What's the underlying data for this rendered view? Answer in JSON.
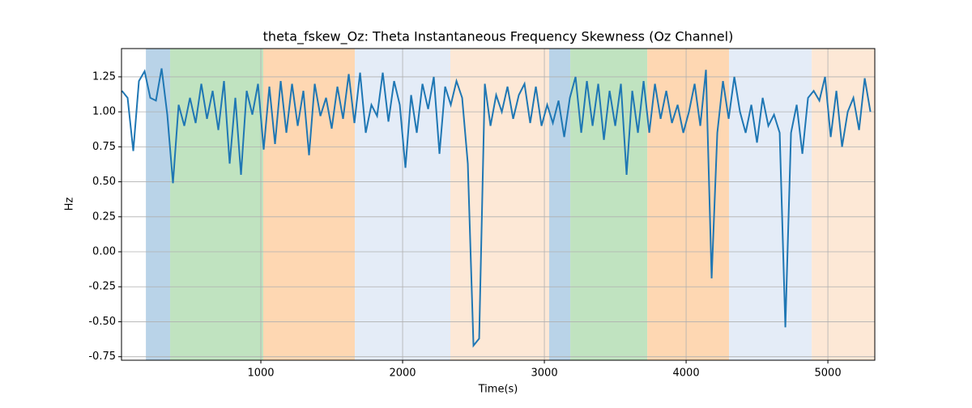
{
  "chart_data": {
    "type": "line",
    "title": "theta_fskew_Oz: Theta Instantaneous Frequency Skewness (Oz Channel)",
    "xlabel": "Time(s)",
    "ylabel": "Hz",
    "xlim": [
      17,
      5331
    ],
    "ylim": [
      -0.775,
      1.452
    ],
    "xticks": [
      1000,
      2000,
      3000,
      4000,
      5000
    ],
    "yticks": [
      -0.75,
      {
        "value": -0.5,
        "label": "-0.50"
      },
      -0.25,
      {
        "value": 0,
        "label": "0.00"
      },
      0.25,
      {
        "value": 0.5,
        "label": "0.50"
      },
      0.75,
      {
        "value": 1,
        "label": "1.00"
      },
      1.25
    ],
    "grid": true,
    "spans": [
      {
        "x0": 189,
        "x1": 360,
        "color": "#b9d3e8"
      },
      {
        "x0": 360,
        "x1": 1017,
        "color": "#c0e3c0"
      },
      {
        "x0": 1017,
        "x1": 1663,
        "color": "#fed7b2"
      },
      {
        "x0": 1663,
        "x1": 2337,
        "color": "#e4ecf7"
      },
      {
        "x0": 2337,
        "x1": 3034,
        "color": "#fde8d6"
      },
      {
        "x0": 3034,
        "x1": 3183,
        "color": "#b9d3e8"
      },
      {
        "x0": 3183,
        "x1": 3726,
        "color": "#c0e3c0"
      },
      {
        "x0": 3726,
        "x1": 4303,
        "color": "#fed7b2"
      },
      {
        "x0": 4303,
        "x1": 4886,
        "color": "#e4ecf7"
      },
      {
        "x0": 4886,
        "x1": 5331,
        "color": "#fde8d6"
      }
    ],
    "x": [
      20,
      60,
      100,
      140,
      180,
      220,
      260,
      300,
      340,
      380,
      420,
      460,
      500,
      540,
      580,
      620,
      660,
      700,
      740,
      780,
      820,
      860,
      900,
      940,
      980,
      1020,
      1060,
      1100,
      1140,
      1180,
      1220,
      1260,
      1300,
      1340,
      1380,
      1420,
      1460,
      1500,
      1540,
      1580,
      1620,
      1660,
      1700,
      1740,
      1780,
      1820,
      1860,
      1900,
      1940,
      1980,
      2020,
      2060,
      2100,
      2140,
      2180,
      2220,
      2260,
      2300,
      2340,
      2380,
      2420,
      2460,
      2500,
      2540,
      2580,
      2620,
      2660,
      2700,
      2740,
      2780,
      2820,
      2860,
      2900,
      2940,
      2980,
      3020,
      3060,
      3100,
      3140,
      3180,
      3220,
      3260,
      3300,
      3340,
      3380,
      3420,
      3460,
      3500,
      3540,
      3580,
      3620,
      3660,
      3700,
      3740,
      3780,
      3820,
      3860,
      3900,
      3940,
      3980,
      4020,
      4060,
      4100,
      4140,
      4180,
      4220,
      4260,
      4300,
      4340,
      4380,
      4420,
      4460,
      4500,
      4540,
      4580,
      4620,
      4660,
      4700,
      4740,
      4780,
      4820,
      4860,
      4900,
      4940,
      4980,
      5020,
      5060,
      5100,
      5140,
      5180,
      5220,
      5260,
      5300
    ],
    "series": [
      {
        "color": "#1f77b4",
        "values": [
          1.15,
          1.1,
          0.72,
          1.22,
          1.29,
          1.1,
          1.08,
          1.31,
          0.98,
          0.49,
          1.05,
          0.9,
          1.1,
          0.92,
          1.2,
          0.95,
          1.15,
          0.87,
          1.22,
          0.63,
          1.1,
          0.55,
          1.15,
          0.98,
          1.2,
          0.73,
          1.18,
          0.77,
          1.22,
          0.85,
          1.2,
          0.9,
          1.15,
          0.69,
          1.2,
          0.97,
          1.1,
          0.88,
          1.18,
          0.95,
          1.27,
          0.92,
          1.28,
          0.85,
          1.05,
          0.97,
          1.28,
          0.93,
          1.22,
          1.05,
          0.6,
          1.12,
          0.85,
          1.2,
          1.02,
          1.25,
          0.7,
          1.18,
          1.05,
          1.22,
          1.1,
          0.63,
          -0.67,
          -0.62,
          1.2,
          0.9,
          1.12,
          1.0,
          1.18,
          0.95,
          1.12,
          1.2,
          0.92,
          1.18,
          0.9,
          1.05,
          0.92,
          1.08,
          0.82,
          1.1,
          1.25,
          0.85,
          1.22,
          0.9,
          1.2,
          0.8,
          1.15,
          0.9,
          1.2,
          0.55,
          1.15,
          0.85,
          1.22,
          0.85,
          1.2,
          0.95,
          1.15,
          0.92,
          1.05,
          0.85,
          1.0,
          1.2,
          0.9,
          1.3,
          -0.19,
          0.85,
          1.22,
          0.95,
          1.25,
          1.0,
          0.85,
          1.05,
          0.78,
          1.1,
          0.9,
          0.98,
          0.85,
          -0.54,
          0.85,
          1.05,
          0.7,
          1.1,
          1.15,
          1.08,
          1.25,
          0.82,
          1.15,
          0.75,
          1.0,
          1.1,
          0.87,
          1.24,
          1.0
        ]
      }
    ]
  }
}
